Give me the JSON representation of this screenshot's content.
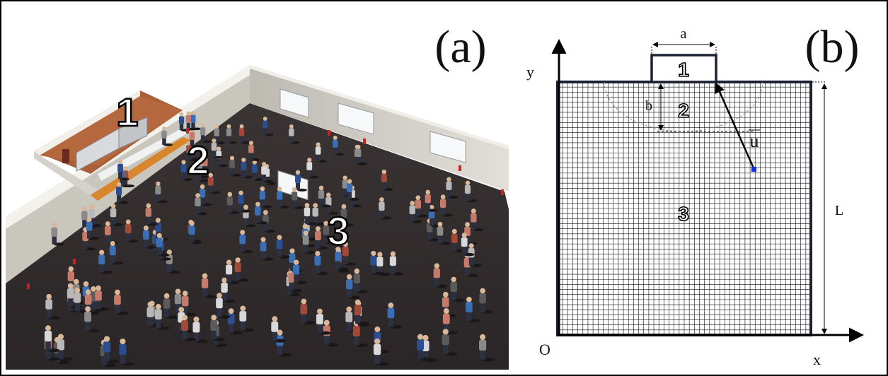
{
  "panel_a": {
    "label": "(a)",
    "zones": [
      "1",
      "2",
      "3"
    ]
  },
  "panel_b": {
    "label": "(b)",
    "axis_y": "y",
    "axis_x": "x",
    "origin": "O",
    "dim_a": "a",
    "dim_b": "b",
    "dim_L": "L",
    "vector": "u",
    "zones": [
      "1",
      "2",
      "3"
    ]
  },
  "colors": {
    "floor": "#2f2a2b",
    "wall": "#cfccc4",
    "wood": "#b0643a",
    "counter": "#d9842b",
    "grid_line": "#111111",
    "point": "#1a2fd6"
  }
}
